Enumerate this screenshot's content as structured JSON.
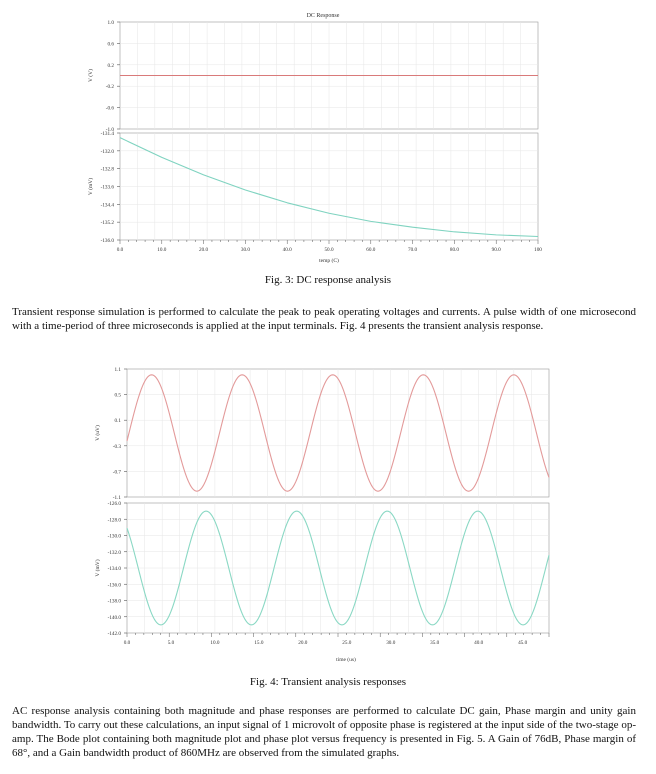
{
  "figure3": {
    "caption": "Fig. 3: DC response analysis",
    "chart_data": [
      {
        "type": "line",
        "title": "DC Response",
        "ylabel": "V (V)",
        "ylim": [
          -1.0,
          1.0
        ],
        "yticks": [
          "1.0",
          "0.6",
          "0.2",
          "-0.2",
          "-0.6",
          "-1.0"
        ],
        "xlim": [
          0,
          100
        ],
        "grid": true,
        "series": [
          {
            "color": "#d97a7a",
            "x": [
              0,
              100
            ],
            "y": [
              0,
              0
            ]
          }
        ]
      },
      {
        "type": "line",
        "xlabel": "temp (C)",
        "ylabel": "V (mV)",
        "ylim": [
          -136.0,
          -131.4
        ],
        "yticks": [
          "-131.4",
          "-132.0",
          "-132.8",
          "-133.6",
          "-134.4",
          "-135.2",
          "-136.0"
        ],
        "xlim": [
          0,
          100
        ],
        "xticks": [
          "0.0",
          "10.0",
          "20.0",
          "30.0",
          "40.0",
          "50.0",
          "60.0",
          "70.0",
          "80.0",
          "90.0",
          "100"
        ],
        "grid": true,
        "series": [
          {
            "color": "#7fd3c0",
            "x": [
              0,
              10,
              20,
              30,
              40,
              50,
              60,
              70,
              80,
              90,
              100
            ],
            "y": [
              -131.6,
              -132.45,
              -133.2,
              -133.85,
              -134.4,
              -134.85,
              -135.2,
              -135.45,
              -135.65,
              -135.78,
              -135.85
            ]
          }
        ]
      }
    ]
  },
  "paragraph1": "Transient response simulation is performed to calculate the peak to peak operating voltages and currents. A pulse width of one microsecond with a time-period of three microseconds is applied at the input terminals. Fig. 4 presents the transient analysis response.",
  "figure4": {
    "caption": "Fig. 4: Transient analysis responses",
    "chart_data": [
      {
        "type": "line",
        "ylabel": "V (uV)",
        "ylim": [
          -1.1,
          1.1
        ],
        "yticks": [
          "1.1",
          "0.5",
          "0.1",
          "-0.3",
          "-0.7",
          "-1.1"
        ],
        "xlim": [
          0,
          48
        ],
        "grid": true,
        "series": [
          {
            "color": "#e39a9a",
            "waveform": "sine",
            "period_us": 10.3,
            "amplitude": 1.0,
            "offset": 0.0,
            "peak_at_us": 2.8
          }
        ]
      },
      {
        "type": "line",
        "xlabel": "time (us)",
        "ylabel": "V (mV)",
        "ylim": [
          -142.0,
          -126.0
        ],
        "yticks": [
          "-126.0",
          "-128.0",
          "-130.0",
          "-132.0",
          "-134.0",
          "-136.0",
          "-138.0",
          "-140.0",
          "-142.0"
        ],
        "xlim": [
          0,
          48
        ],
        "xticks": [
          "0.0",
          "5.0",
          "10.0",
          "15.0",
          "20.0",
          "25.0",
          "30.0",
          "35.0",
          "40.0",
          "45.0"
        ],
        "grid": true,
        "series": [
          {
            "color": "#8ad8c4",
            "waveform": "sine",
            "period_us": 10.3,
            "amplitude": 7.0,
            "offset": -134.0,
            "peak_at_us": 9.0
          }
        ]
      }
    ]
  },
  "paragraph2": "AC response analysis containing both magnitude and phase responses are performed to calculate DC gain, Phase margin and unity gain bandwidth. To carry out these calculations, an input signal of 1 microvolt of opposite phase is registered at the input side of the two-stage op-amp. The Bode plot containing both magnitude plot and phase plot versus frequency is presented in Fig. 5. A Gain of 76dB, Phase margin of 68°, and a Gain bandwidth product of 860MHz are observed from the simulated graphs."
}
